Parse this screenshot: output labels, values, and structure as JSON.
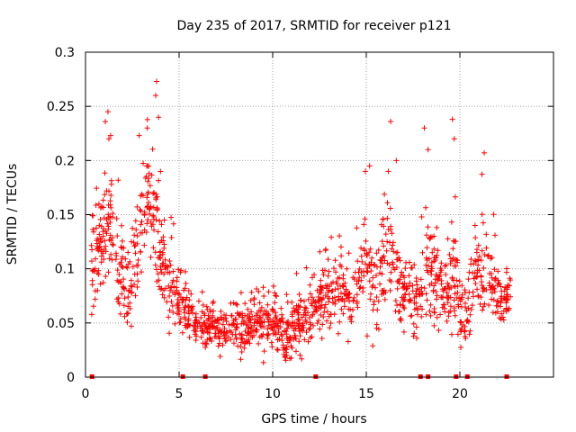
{
  "chart_data": {
    "type": "scatter",
    "title": "Day 235 of 2017, SRMTID for receiver p121",
    "xlabel": "GPS time / hours",
    "ylabel": "SRMTID / TECUs",
    "xlim": [
      0,
      25
    ],
    "ylim": [
      0,
      0.3
    ],
    "x_ticks": [
      0,
      5,
      10,
      15,
      20
    ],
    "x_tick_labels": [
      "0",
      "5",
      "10",
      "15",
      "20"
    ],
    "y_ticks": [
      0,
      0.05,
      0.1,
      0.15,
      0.2,
      0.25,
      0.3
    ],
    "y_tick_labels": [
      "0",
      "0.05",
      "0.1",
      "0.15",
      "0.2",
      "0.25",
      "0.3"
    ],
    "grid": true,
    "marker": "+",
    "color": "#ff0000",
    "density_profile": [
      {
        "x": 0.3,
        "y": 0.1,
        "spread": 0.03
      },
      {
        "x": 0.8,
        "y": 0.12,
        "spread": 0.035
      },
      {
        "x": 1.2,
        "y": 0.15,
        "spread": 0.04
      },
      {
        "x": 1.8,
        "y": 0.1,
        "spread": 0.03
      },
      {
        "x": 2.3,
        "y": 0.08,
        "spread": 0.03
      },
      {
        "x": 2.8,
        "y": 0.12,
        "spread": 0.035
      },
      {
        "x": 3.3,
        "y": 0.17,
        "spread": 0.03
      },
      {
        "x": 3.8,
        "y": 0.15,
        "spread": 0.045
      },
      {
        "x": 4.3,
        "y": 0.09,
        "spread": 0.025
      },
      {
        "x": 5.0,
        "y": 0.07,
        "spread": 0.02
      },
      {
        "x": 6.0,
        "y": 0.05,
        "spread": 0.015
      },
      {
        "x": 7.0,
        "y": 0.045,
        "spread": 0.015
      },
      {
        "x": 8.0,
        "y": 0.045,
        "spread": 0.015
      },
      {
        "x": 9.0,
        "y": 0.05,
        "spread": 0.015
      },
      {
        "x": 10.0,
        "y": 0.05,
        "spread": 0.018
      },
      {
        "x": 10.7,
        "y": 0.035,
        "spread": 0.015
      },
      {
        "x": 11.5,
        "y": 0.05,
        "spread": 0.018
      },
      {
        "x": 12.5,
        "y": 0.07,
        "spread": 0.02
      },
      {
        "x": 13.5,
        "y": 0.08,
        "spread": 0.022
      },
      {
        "x": 14.3,
        "y": 0.075,
        "spread": 0.02
      },
      {
        "x": 14.9,
        "y": 0.11,
        "spread": 0.035
      },
      {
        "x": 15.6,
        "y": 0.08,
        "spread": 0.03
      },
      {
        "x": 16.2,
        "y": 0.12,
        "spread": 0.04
      },
      {
        "x": 17.0,
        "y": 0.08,
        "spread": 0.025
      },
      {
        "x": 17.7,
        "y": 0.07,
        "spread": 0.025
      },
      {
        "x": 18.4,
        "y": 0.1,
        "spread": 0.035
      },
      {
        "x": 19.2,
        "y": 0.07,
        "spread": 0.025
      },
      {
        "x": 19.8,
        "y": 0.1,
        "spread": 0.04
      },
      {
        "x": 20.2,
        "y": 0.04,
        "spread": 0.02
      },
      {
        "x": 20.9,
        "y": 0.1,
        "spread": 0.03
      },
      {
        "x": 21.6,
        "y": 0.09,
        "spread": 0.025
      },
      {
        "x": 22.2,
        "y": 0.07,
        "spread": 0.02
      },
      {
        "x": 22.7,
        "y": 0.075,
        "spread": 0.015
      }
    ],
    "peaks": [
      {
        "x": 1.2,
        "y": 0.245
      },
      {
        "x": 1.25,
        "y": 0.22
      },
      {
        "x": 3.8,
        "y": 0.273
      },
      {
        "x": 3.75,
        "y": 0.26
      },
      {
        "x": 3.3,
        "y": 0.23
      },
      {
        "x": 3.9,
        "y": 0.24
      },
      {
        "x": 16.3,
        "y": 0.236
      },
      {
        "x": 18.1,
        "y": 0.23
      },
      {
        "x": 19.6,
        "y": 0.238
      },
      {
        "x": 19.7,
        "y": 0.22
      },
      {
        "x": 21.3,
        "y": 0.207
      },
      {
        "x": 14.95,
        "y": 0.19
      },
      {
        "x": 16.6,
        "y": 0.2
      },
      {
        "x": 18.3,
        "y": 0.21
      }
    ],
    "baseline_markers_x": [
      0.35,
      5.2,
      6.4,
      12.3,
      17.9,
      18.3,
      19.8,
      20.4,
      22.5
    ]
  }
}
